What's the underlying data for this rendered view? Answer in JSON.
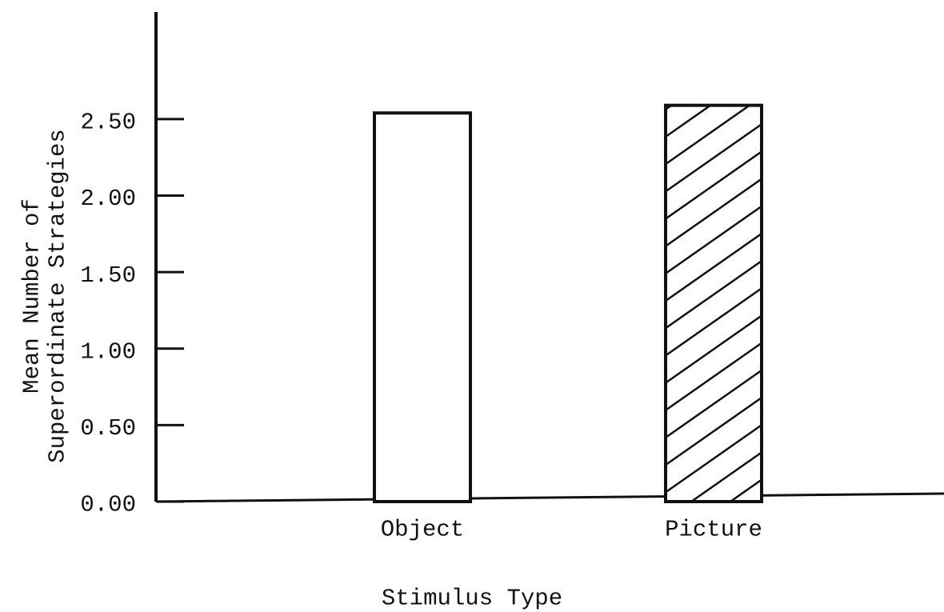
{
  "chart_data": {
    "type": "bar",
    "categories": [
      "Object",
      "Picture"
    ],
    "values": [
      2.54,
      2.59
    ],
    "hatch": [
      false,
      true
    ],
    "color": "#ffffff",
    "x_label": "Stimulus Type",
    "y_label": [
      "Mean Number of",
      "Superordinate Strategies"
    ],
    "ylim": [
      0,
      3.2
    ],
    "yticks": [
      {
        "value": 0,
        "label": "0.00"
      },
      {
        "value": 0.5,
        "label": "0.50"
      },
      {
        "value": 1,
        "label": "1.00"
      },
      {
        "value": 1.5,
        "label": "1.50"
      },
      {
        "value": 2,
        "label": "2.00"
      },
      {
        "value": 2.5,
        "label": "2.50"
      }
    ],
    "grid": false
  }
}
